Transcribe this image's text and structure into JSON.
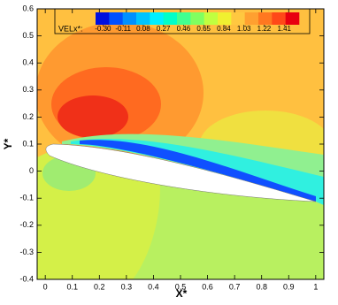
{
  "chart_data": {
    "type": "contour",
    "x_label": "X*",
    "y_label": "Y*",
    "xlim": [
      -0.03,
      1.03
    ],
    "ylim": [
      -0.4,
      0.6
    ],
    "xticks": [
      0,
      0.1,
      0.2,
      0.3,
      0.4,
      0.5,
      0.6,
      0.7,
      0.8,
      0.9,
      1
    ],
    "yticks": [
      -0.4,
      -0.3,
      -0.2,
      -0.1,
      0,
      0.1,
      0.2,
      0.3,
      0.4,
      0.5,
      0.6
    ],
    "colorbar": {
      "label": "VELx*:",
      "clim": [
        -0.37,
        1.55
      ],
      "colors": [
        "#0010e0",
        "#0050ff",
        "#0090ff",
        "#00c4ff",
        "#00f0ff",
        "#00ffc8",
        "#40ff90",
        "#80ff60",
        "#c0ff40",
        "#f0f030",
        "#ffc840",
        "#ffa030",
        "#ff7820",
        "#ff4818",
        "#e80010"
      ],
      "ticks": [
        {
          "value": -0.3,
          "label": "-0.30"
        },
        -0.11,
        0.08,
        0.27,
        0.46,
        0.65,
        0.84,
        1.03,
        1.22,
        1.41
      ]
    }
  }
}
